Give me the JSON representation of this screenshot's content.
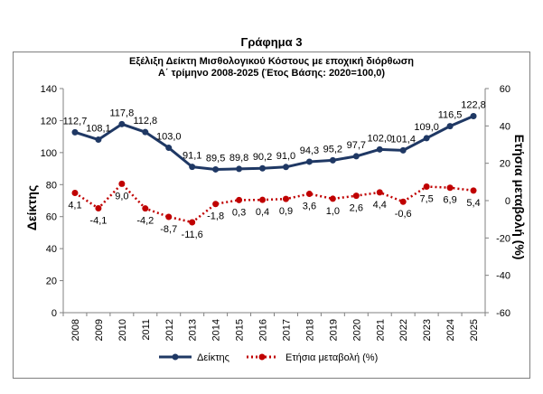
{
  "heading": "Γράφημα 3",
  "chart_data": {
    "type": "line",
    "title": "Εξέλιξη Δείκτη Μισθολογικού  Κόστους με εποχική διόρθωση",
    "subtitle": "Α΄ τρίμηνο 2008-2025 (Έτος Βάσης: 2020=100,0)",
    "xlabel": "",
    "ylabel": "Δείκτης",
    "y2label": "Ετήσια μεταβολή (%)",
    "categories": [
      "2008",
      "2009",
      "2010",
      "2011",
      "2012",
      "2013",
      "2014",
      "2015",
      "2016",
      "2017",
      "2018",
      "2019",
      "2020",
      "2021",
      "2022",
      "2023",
      "2024",
      "2025"
    ],
    "ylim": [
      0,
      140
    ],
    "yticks": [
      "0",
      "20",
      "40",
      "60",
      "80",
      "100",
      "120",
      "140"
    ],
    "y2lim": [
      -60,
      60
    ],
    "y2ticks": [
      "-60",
      "-40",
      "-20",
      "0",
      "20",
      "40",
      "60"
    ],
    "legend_position": "bottom",
    "grid": false,
    "series": [
      {
        "name": "Δείκτης",
        "axis": "left",
        "color": "#1f3864",
        "values": [
          112.7,
          108.1,
          117.8,
          112.8,
          103.0,
          91.1,
          89.5,
          89.8,
          90.2,
          91.0,
          94.3,
          95.2,
          97.7,
          102.0,
          101.4,
          109.0,
          116.5,
          122.8
        ],
        "labels": [
          "112,7",
          "108,1",
          "117,8",
          "112,8",
          "103,0",
          "91,1",
          "89,5",
          "89,8",
          "90,2",
          "91,0",
          "94,3",
          "95,2",
          "97,7",
          "102,0",
          "101,4",
          "109,0",
          "116,5",
          "122,8"
        ]
      },
      {
        "name": "Ετήσια μεταβολή (%)",
        "axis": "right",
        "color": "#c00000",
        "values": [
          4.1,
          -4.1,
          9.0,
          -4.2,
          -8.7,
          -11.6,
          -1.8,
          0.3,
          0.4,
          0.9,
          3.6,
          1.0,
          2.6,
          4.4,
          -0.6,
          7.5,
          6.9,
          5.4
        ],
        "labels": [
          "4,1",
          "-4,1",
          "9,0",
          "-4,2",
          "-8,7",
          "-11,6",
          "-1,8",
          "0,3",
          "0,4",
          "0,9",
          "3,6",
          "1,0",
          "2,6",
          "4,4",
          "-0,6",
          "7,5",
          "6,9",
          "5,4"
        ]
      }
    ]
  }
}
